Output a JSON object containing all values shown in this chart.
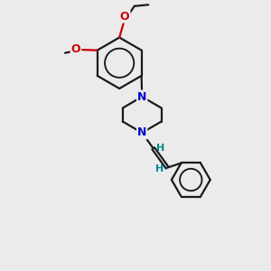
{
  "bg_color": "#ebebeb",
  "bond_color": "#1a1a1a",
  "N_color": "#0000cc",
  "O_color": "#cc0000",
  "H_color": "#008888",
  "line_width": 1.6,
  "font_size": 7.5,
  "fig_width": 3.0,
  "fig_height": 3.0,
  "dpi": 100,
  "xlim": [
    0,
    10
  ],
  "ylim": [
    0,
    10
  ]
}
